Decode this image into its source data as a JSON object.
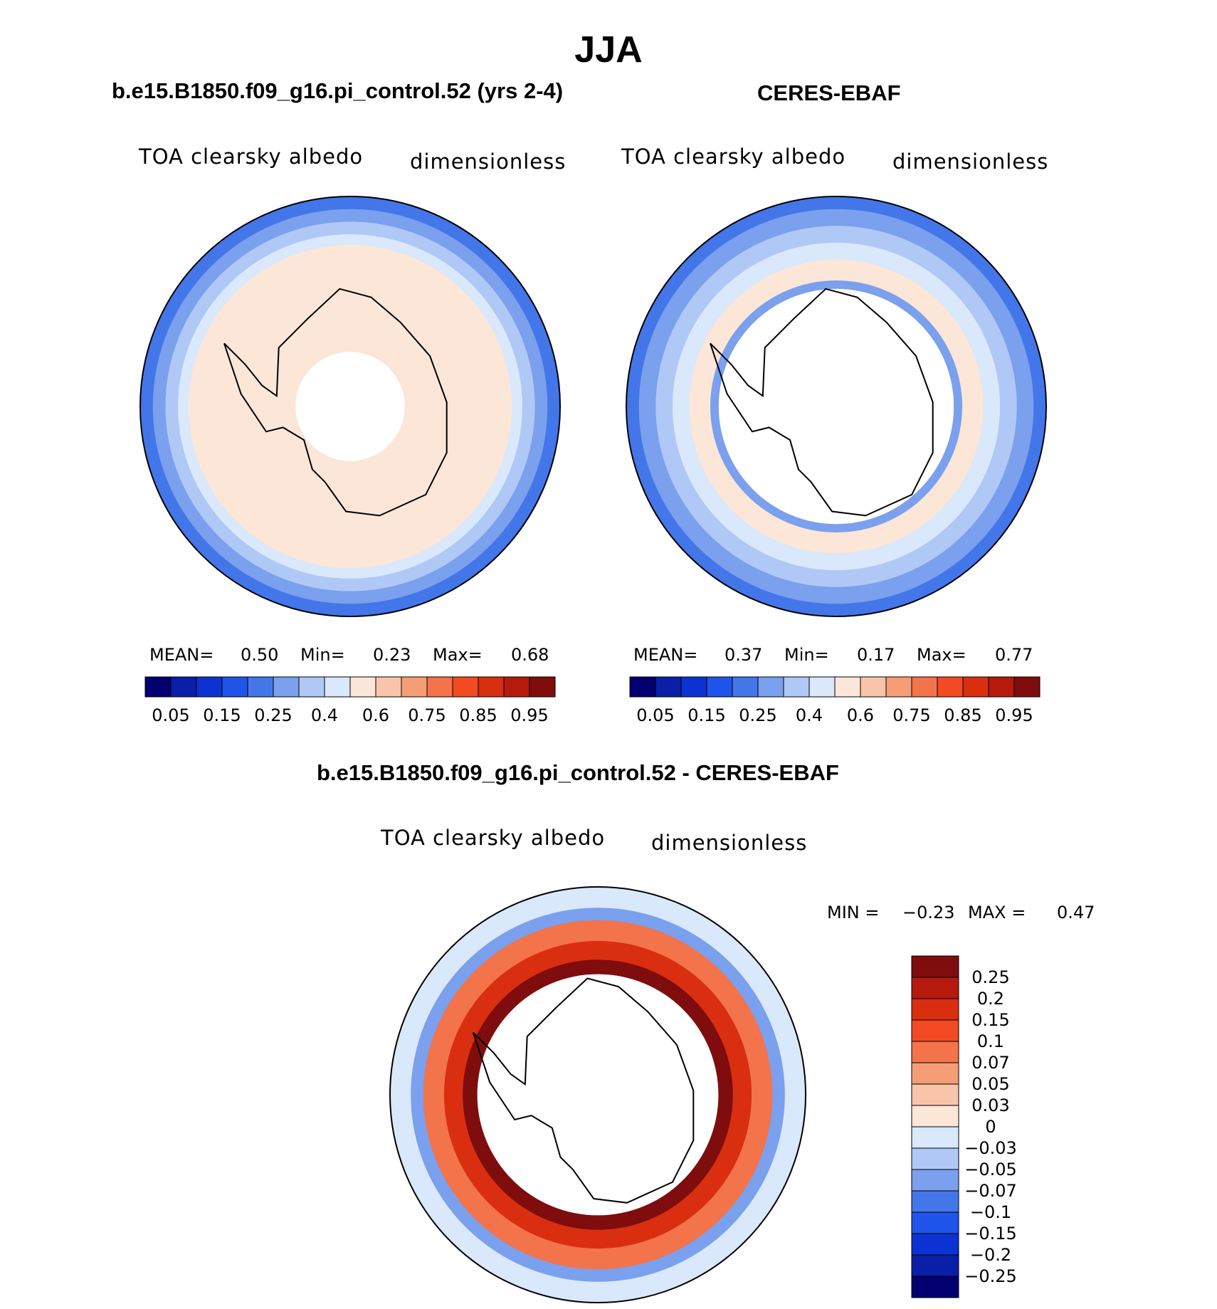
{
  "figure_title": "JJA",
  "chart_data": [
    {
      "type": "heatmap",
      "title": "b.e15.B1850.f09_g16.pi_control.52 (yrs 2-4)",
      "variable": "TOA clearsky albedo",
      "units": "dimensionless",
      "projection": "south polar stereographic",
      "stats": {
        "mean_label": "MEAN=",
        "mean": "0.50",
        "min_label": "Min=",
        "min": "0.23",
        "max_label": "Max=",
        "max": "0.68"
      },
      "colorbar_labels": [
        "0.05",
        "0.15",
        "0.25",
        "0.4",
        "0.6",
        "0.75",
        "0.85",
        "0.95"
      ],
      "rings": [
        {
          "r": 1.0,
          "value": 0.28
        },
        {
          "r": 0.94,
          "value": 0.33
        },
        {
          "r": 0.88,
          "value": 0.38
        },
        {
          "r": 0.82,
          "value": 0.45
        },
        {
          "r": 0.77,
          "value": 0.55
        },
        {
          "r": 0.29,
          "value": 0.52
        },
        {
          "r": 0.26,
          "value": null
        }
      ]
    },
    {
      "type": "heatmap",
      "title": "CERES-EBAF",
      "variable": "TOA clearsky albedo",
      "units": "dimensionless",
      "projection": "south polar stereographic",
      "stats": {
        "mean_label": "MEAN=",
        "mean": "0.37",
        "min_label": "Min=",
        "min": "0.17",
        "max_label": "Max=",
        "max": "0.77"
      },
      "colorbar_labels": [
        "0.05",
        "0.15",
        "0.25",
        "0.4",
        "0.6",
        "0.75",
        "0.85",
        "0.95"
      ],
      "rings": [
        {
          "r": 1.0,
          "value": 0.28
        },
        {
          "r": 0.94,
          "value": 0.33
        },
        {
          "r": 0.86,
          "value": 0.38
        },
        {
          "r": 0.78,
          "value": 0.45
        },
        {
          "r": 0.7,
          "value": 0.52
        },
        {
          "r": 0.64,
          "value": 0.58
        },
        {
          "r": 0.6,
          "value": 0.3
        },
        {
          "r": 0.56,
          "value": null
        }
      ]
    },
    {
      "type": "heatmap",
      "title": "b.e15.B1850.f09_g16.pi_control.52 - CERES-EBAF",
      "variable": "TOA clearsky albedo",
      "units": "dimensionless",
      "projection": "south polar stereographic",
      "stats": {
        "min_label": "MIN =",
        "min": "−0.23",
        "max_label": "MAX =",
        "max": "0.47"
      },
      "colorbar_labels": [
        "0.25",
        "0.2",
        "0.15",
        "0.1",
        "0.07",
        "0.05",
        "0.03",
        "0",
        "−0.03",
        "−0.05",
        "−0.07",
        "−0.1",
        "−0.15",
        "−0.2",
        "−0.25"
      ],
      "rings": [
        {
          "r": 1.0,
          "value": -0.02
        },
        {
          "r": 0.9,
          "value": -0.06
        },
        {
          "r": 0.84,
          "value": 0.09
        },
        {
          "r": 0.74,
          "value": 0.17
        },
        {
          "r": 0.65,
          "value": 0.3
        },
        {
          "r": 0.58,
          "value": null
        }
      ]
    }
  ],
  "colors": {
    "abs_scale": [
      "#03006f",
      "#0a1fa8",
      "#0c33d1",
      "#1f55ea",
      "#4376e9",
      "#7aa0ee",
      "#afc8f6",
      "#d9e8fb",
      "#fbe6d8",
      "#f9c5aa",
      "#f59e76",
      "#f3734b",
      "#f24a23",
      "#da2e11",
      "#b51b0d",
      "#7f0d0d"
    ],
    "diff_scale": [
      "#03006f",
      "#0a1fa8",
      "#0c33d1",
      "#1f55ea",
      "#4376e9",
      "#7aa0ee",
      "#afc8f6",
      "#d9e8fb",
      "#fbe6d8",
      "#f9c5aa",
      "#f59e76",
      "#f3734b",
      "#f24a23",
      "#da2e11",
      "#b51b0d",
      "#7f0d0d"
    ],
    "coast": "#000000",
    "missing": "#ffffff"
  }
}
